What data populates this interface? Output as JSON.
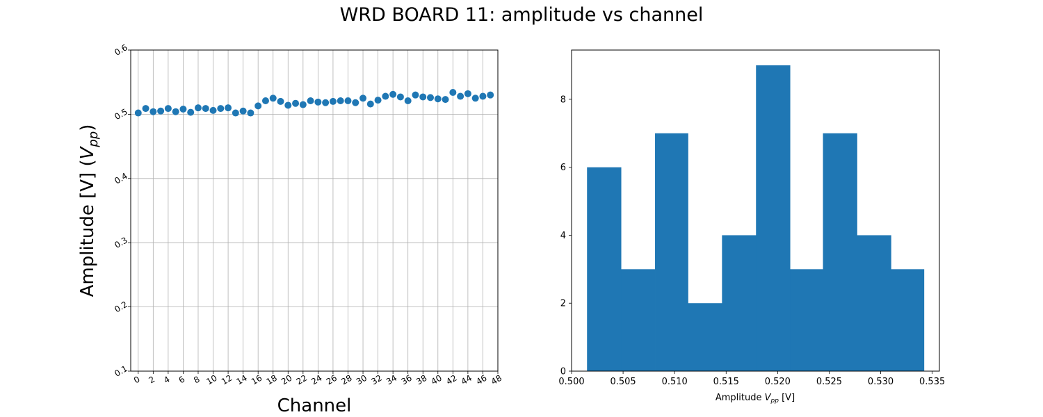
{
  "title": "WRD BOARD 11: amplitude vs channel",
  "chart_data": [
    {
      "type": "scatter",
      "xlabel": "Channel",
      "ylabel_main": "Amplitude [V] (",
      "ylabel_var": "V",
      "ylabel_sub": "pp",
      "ylabel_end": ")",
      "xlim": [
        -1,
        48
      ],
      "ylim": [
        0.1,
        0.6
      ],
      "xticks": [
        0,
        2,
        4,
        6,
        8,
        10,
        12,
        14,
        16,
        18,
        20,
        22,
        24,
        26,
        28,
        30,
        32,
        34,
        36,
        38,
        40,
        42,
        44,
        46,
        48
      ],
      "yticks": [
        0.1,
        0.2,
        0.3,
        0.4,
        0.5,
        0.6
      ],
      "grid": "both",
      "color": "#1f77b4",
      "x": [
        0,
        1,
        2,
        3,
        4,
        5,
        6,
        7,
        8,
        9,
        10,
        11,
        12,
        13,
        14,
        15,
        16,
        17,
        18,
        19,
        20,
        21,
        22,
        23,
        24,
        25,
        26,
        27,
        28,
        29,
        30,
        31,
        32,
        33,
        34,
        35,
        36,
        37,
        38,
        39,
        40,
        41,
        42,
        43,
        44,
        45,
        46,
        47
      ],
      "y": [
        0.502,
        0.509,
        0.504,
        0.505,
        0.509,
        0.504,
        0.508,
        0.503,
        0.51,
        0.509,
        0.506,
        0.509,
        0.51,
        0.502,
        0.505,
        0.502,
        0.513,
        0.521,
        0.525,
        0.52,
        0.514,
        0.517,
        0.515,
        0.521,
        0.519,
        0.518,
        0.52,
        0.521,
        0.521,
        0.518,
        0.525,
        0.516,
        0.522,
        0.528,
        0.531,
        0.527,
        0.521,
        0.53,
        0.527,
        0.526,
        0.524,
        0.523,
        0.534,
        0.528,
        0.532,
        0.525,
        0.528,
        0.53
      ]
    },
    {
      "type": "bar",
      "subtype": "histogram",
      "xlabel_main": "Amplitude ",
      "xlabel_var": "V",
      "xlabel_sub": "pp",
      "xlabel_end": " [V]",
      "xlim": [
        0.5,
        0.5357
      ],
      "ylim": [
        0,
        9.45
      ],
      "xticks": [
        "0.500",
        "0.505",
        "0.510",
        "0.515",
        "0.520",
        "0.525",
        "0.530",
        "0.535"
      ],
      "yticks": [
        0,
        2,
        4,
        6,
        8
      ],
      "grid": "none",
      "color": "#1f77b4",
      "bin_edges": [
        0.5015,
        0.5048,
        0.5081,
        0.5113,
        0.5146,
        0.5179,
        0.5212,
        0.5244,
        0.5277,
        0.531,
        0.5342
      ],
      "values": [
        6,
        3,
        7,
        2,
        4,
        9,
        3,
        7,
        4,
        3
      ]
    }
  ]
}
